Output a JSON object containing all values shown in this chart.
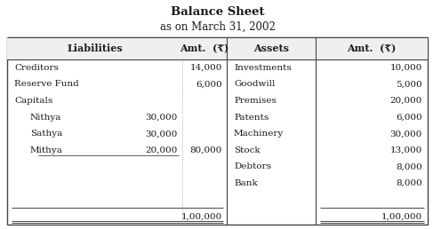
{
  "title": "Balance Sheet",
  "subtitle": "as on March 31, 2002",
  "liabilities": [
    {
      "name": "Creditors",
      "sub_amt": "",
      "amt": "14,000"
    },
    {
      "name": "Reserve Fund",
      "sub_amt": "",
      "amt": "6,000"
    },
    {
      "name": "Capitals",
      "sub_amt": "",
      "amt": ""
    },
    {
      "name": "  Nithya",
      "sub_amt": "30,000",
      "amt": ""
    },
    {
      "name": "  Sathya",
      "sub_amt": "30,000",
      "amt": ""
    },
    {
      "name": "  Mithya",
      "sub_amt": "20,000",
      "amt": "80,000"
    },
    {
      "name": "",
      "sub_amt": "",
      "amt": ""
    },
    {
      "name": "",
      "sub_amt": "",
      "amt": ""
    },
    {
      "name": "",
      "sub_amt": "",
      "amt": ""
    },
    {
      "name": "",
      "sub_amt": "",
      "amt": "1,00,000"
    }
  ],
  "assets": [
    {
      "name": "Investments",
      "amt": "10,000"
    },
    {
      "name": "Goodwill",
      "amt": "5,000"
    },
    {
      "name": "Premises",
      "amt": "20,000"
    },
    {
      "name": "Patents",
      "amt": "6,000"
    },
    {
      "name": "Machinery",
      "amt": "30,000"
    },
    {
      "name": "Stock",
      "amt": "13,000"
    },
    {
      "name": "Debtors",
      "amt": "8,000"
    },
    {
      "name": "Bank",
      "amt": "8,000"
    },
    {
      "name": "",
      "amt": ""
    },
    {
      "name": "",
      "amt": "1,00,000"
    }
  ],
  "bg_color": "#ffffff",
  "text_color": "#1a1a1a",
  "line_color": "#444444",
  "title_fontsize": 9.5,
  "subtitle_fontsize": 8.5,
  "header_fontsize": 8.0,
  "body_fontsize": 7.5
}
